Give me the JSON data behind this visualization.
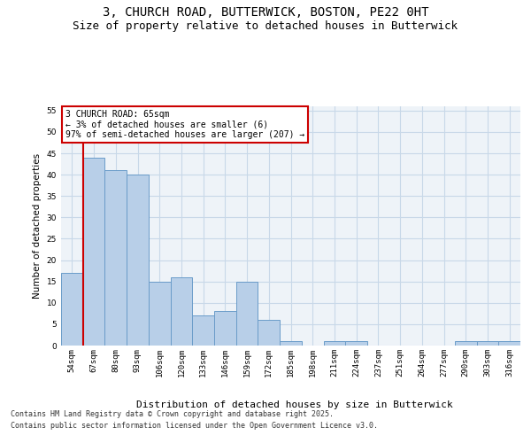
{
  "title": "3, CHURCH ROAD, BUTTERWICK, BOSTON, PE22 0HT",
  "subtitle": "Size of property relative to detached houses in Butterwick",
  "xlabel": "Distribution of detached houses by size in Butterwick",
  "ylabel": "Number of detached properties",
  "categories": [
    "54sqm",
    "67sqm",
    "80sqm",
    "93sqm",
    "106sqm",
    "120sqm",
    "133sqm",
    "146sqm",
    "159sqm",
    "172sqm",
    "185sqm",
    "198sqm",
    "211sqm",
    "224sqm",
    "237sqm",
    "251sqm",
    "264sqm",
    "277sqm",
    "290sqm",
    "303sqm",
    "316sqm"
  ],
  "values": [
    17,
    44,
    41,
    40,
    15,
    16,
    7,
    8,
    15,
    6,
    1,
    0,
    1,
    1,
    0,
    0,
    0,
    0,
    1,
    1,
    1
  ],
  "bar_color": "#b8cfe8",
  "bar_edge_color": "#6a9cc9",
  "annotation_title": "3 CHURCH ROAD: 65sqm",
  "annotation_line1": "← 3% of detached houses are smaller (6)",
  "annotation_line2": "97% of semi-detached houses are larger (207) →",
  "annotation_box_color": "#ffffff",
  "annotation_box_edge": "#cc0000",
  "vline_color": "#cc0000",
  "vline_x": 0.5,
  "grid_color": "#c8d8e8",
  "background_color": "#eef3f8",
  "ylim": [
    0,
    56
  ],
  "yticks": [
    0,
    5,
    10,
    15,
    20,
    25,
    30,
    35,
    40,
    45,
    50,
    55
  ],
  "footer_line1": "Contains HM Land Registry data © Crown copyright and database right 2025.",
  "footer_line2": "Contains public sector information licensed under the Open Government Licence v3.0.",
  "title_fontsize": 10,
  "subtitle_fontsize": 9,
  "ylabel_fontsize": 7.5,
  "xlabel_fontsize": 8,
  "tick_fontsize": 6.5,
  "annotation_fontsize": 7,
  "footer_fontsize": 6
}
